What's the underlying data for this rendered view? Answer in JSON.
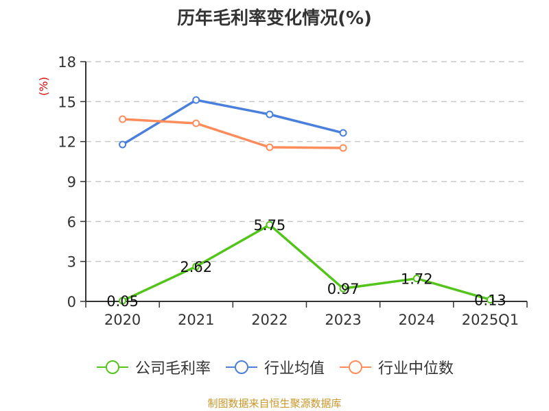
{
  "title": "历年毛利率变化情况(%)",
  "yaxis_unit": "(%)",
  "source": "制图数据来自恒生聚源数据库",
  "colors": {
    "company": "#52c41a",
    "avg": "#4a7fdc",
    "median": "#ff8c5a",
    "unit": "#e00000",
    "source": "#c8962a"
  },
  "legend": [
    {
      "label": "公司毛利率",
      "color": "#52c41a"
    },
    {
      "label": "行业均值",
      "color": "#4a7fdc"
    },
    {
      "label": "行业中位数",
      "color": "#ff8c5a"
    }
  ],
  "chart_data": {
    "type": "line",
    "title": "历年毛利率变化情况(%)",
    "xlabel": "",
    "ylabel": "(%)",
    "categories": [
      "2020",
      "2021",
      "2022",
      "2023",
      "2024",
      "2025Q1"
    ],
    "yticks": [
      0,
      3,
      6,
      9,
      12,
      15,
      18
    ],
    "ylim": [
      0,
      18
    ],
    "grid": true,
    "legend_position": "bottom",
    "series": [
      {
        "name": "公司毛利率",
        "values": [
          0.05,
          2.62,
          5.75,
          0.97,
          1.72,
          0.13
        ],
        "labels": [
          "0.05",
          "2.62",
          "5.75",
          "0.97",
          "1.72",
          "0.13"
        ]
      },
      {
        "name": "行业均值",
        "values": [
          11.78,
          15.12,
          14.04,
          12.65,
          null,
          null
        ]
      },
      {
        "name": "行业中位数",
        "values": [
          13.68,
          13.37,
          11.57,
          11.52,
          null,
          null
        ]
      }
    ]
  }
}
